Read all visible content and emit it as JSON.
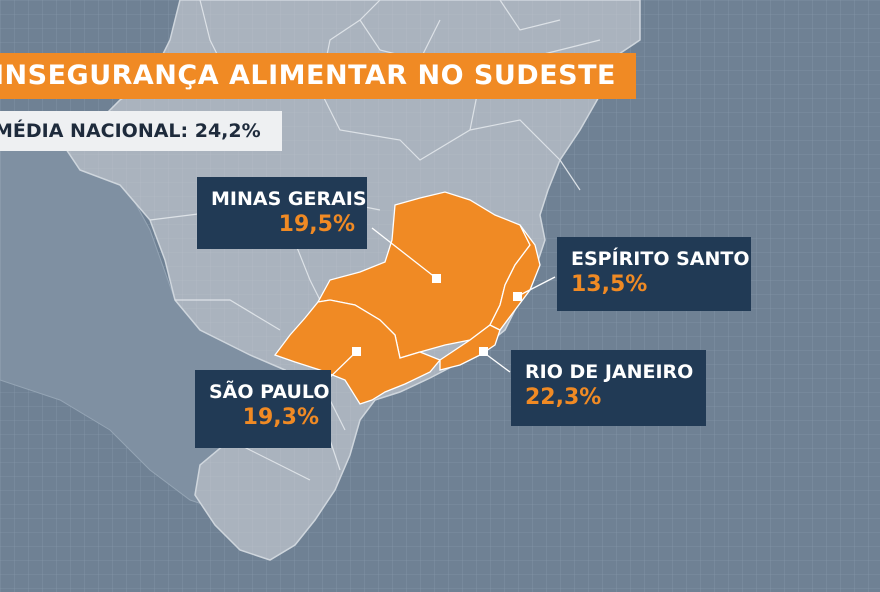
{
  "title": "INSEGURANÇA ALIMENTAR NO SUDESTE",
  "subtitle": "MÉDIA NACIONAL: 24,2%",
  "colors": {
    "highlight": "#f08a24",
    "label_bg": "#213a55",
    "background": "#6f8194",
    "land": "#a9b2bd"
  },
  "regions": [
    {
      "name": "MINAS GERAIS",
      "value": "19,5%"
    },
    {
      "name": "ESPÍRITO SANTO",
      "value": "13,5%"
    },
    {
      "name": "SÃO PAULO",
      "value": "19,3%"
    },
    {
      "name": "RIO DE JANEIRO",
      "value": "22,3%"
    }
  ]
}
